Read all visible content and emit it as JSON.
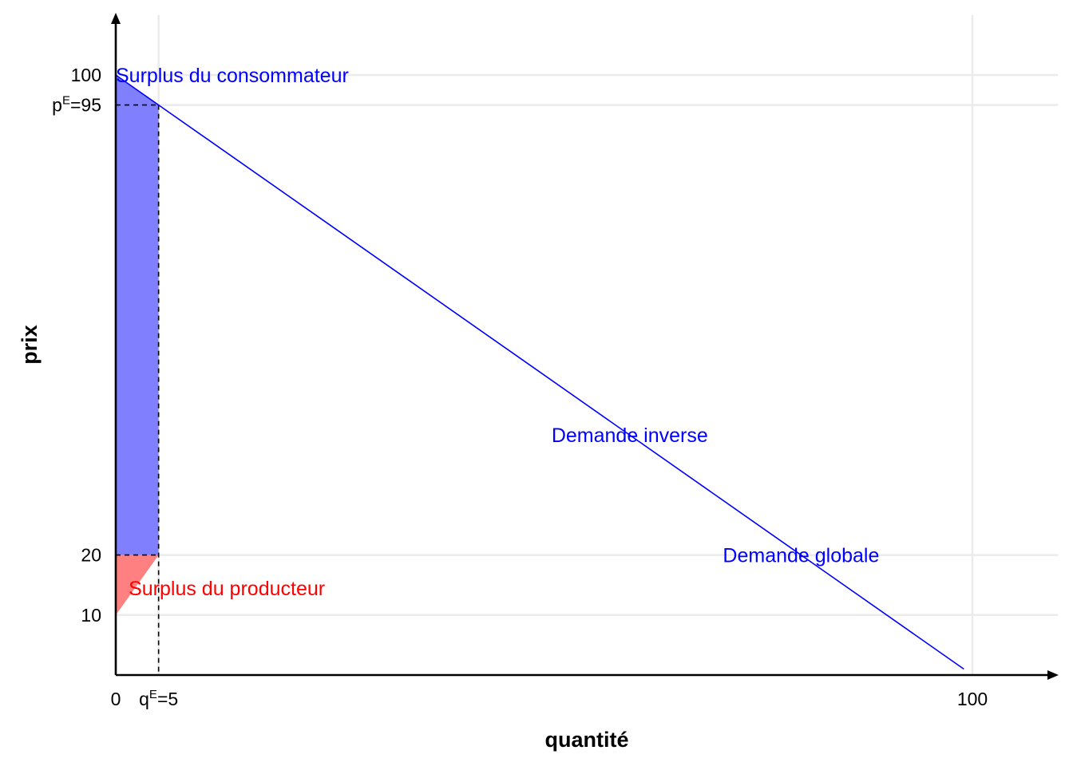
{
  "chart_data": {
    "type": "line",
    "xlabel": "quantité",
    "ylabel": "prix",
    "xlim": [
      0,
      110
    ],
    "ylim": [
      0,
      110
    ],
    "grid": true,
    "x_ticks": [
      {
        "value": 0,
        "label": "0"
      },
      {
        "value": 5,
        "label": "q",
        "sup": "E",
        "suffix": "=5"
      },
      {
        "value": 100,
        "label": "100"
      }
    ],
    "y_ticks": [
      {
        "value": 10,
        "label": "10"
      },
      {
        "value": 20,
        "label": "20"
      },
      {
        "value": 95,
        "label": "p",
        "sup": "E",
        "suffix": "=95"
      },
      {
        "value": 100,
        "label": "100"
      }
    ],
    "series": [
      {
        "x": [
          0,
          5,
          99
        ],
        "y": [
          100,
          95,
          1
        ],
        "color": "#0000ff"
      }
    ],
    "equilibrium": {
      "q": 5,
      "p": 95,
      "p_floor": 20
    },
    "areas": [
      {
        "name": "Surplus du consommateur",
        "color": "#8080ff",
        "polygon": [
          [
            0,
            100
          ],
          [
            5,
            95
          ],
          [
            5,
            20
          ],
          [
            0,
            20
          ]
        ]
      },
      {
        "name": "Surplus du producteur",
        "color": "#ff8080",
        "polygon": [
          [
            0,
            20
          ],
          [
            5,
            20
          ],
          [
            0,
            10
          ]
        ]
      }
    ],
    "annotations": [
      {
        "text": "Surplus du consommateur",
        "x": 0,
        "y": 100,
        "anchor": "start",
        "color": "#0000ff"
      },
      {
        "text": "Demande inverse",
        "x": 60,
        "y": 40,
        "anchor": "middle",
        "color": "#0000ff"
      },
      {
        "text": "Demande globale",
        "x": 80,
        "y": 20,
        "anchor": "middle",
        "color": "#0000ff"
      },
      {
        "text": "Surplus du producteur",
        "x": 1.5,
        "y": 14.5,
        "anchor": "start",
        "color": "#ff0000"
      }
    ]
  }
}
